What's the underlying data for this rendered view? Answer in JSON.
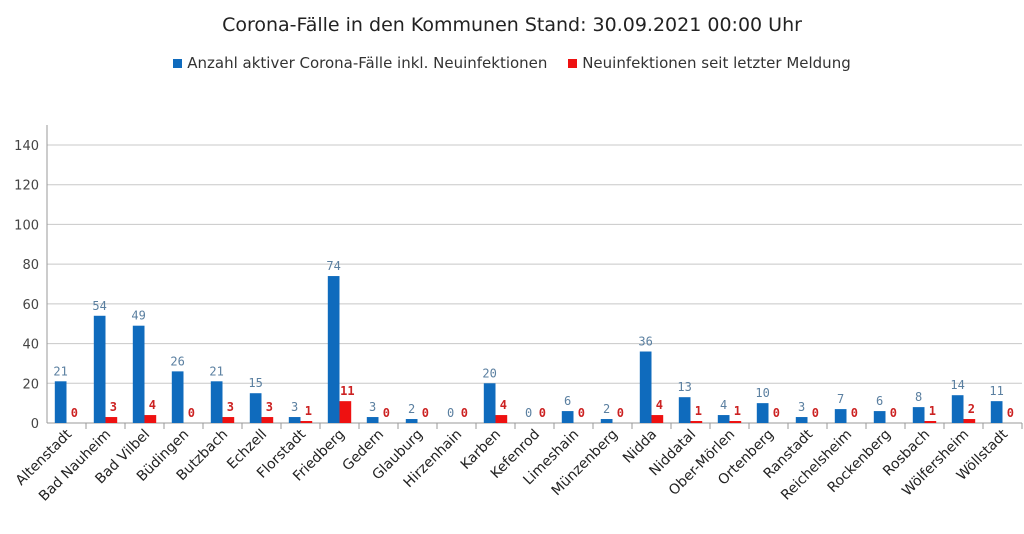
{
  "chart_data": {
    "type": "bar",
    "title": "Corona-Fälle in den Kommunen Stand: 30.09.2021 00:00 Uhr",
    "categories": [
      "Altenstadt",
      "Bad Nauheim",
      "Bad Vilbel",
      "Büdingen",
      "Butzbach",
      "Echzell",
      "Florstadt",
      "Friedberg",
      "Gedern",
      "Glauburg",
      "Hirzenhain",
      "Karben",
      "Kefenrod",
      "Limeshain",
      "Münzenberg",
      "Nidda",
      "Niddatal",
      "Ober-Mörlen",
      "Ortenberg",
      "Ranstadt",
      "Reichelsheim",
      "Rockenberg",
      "Rosbach",
      "Wölfersheim",
      "Wöllstadt"
    ],
    "series": [
      {
        "name": "Anzahl aktiver Corona-Fälle inkl. Neuinfektionen",
        "color": "#0f6bbd",
        "values": [
          21,
          54,
          49,
          26,
          21,
          15,
          3,
          74,
          3,
          2,
          0,
          20,
          0,
          6,
          2,
          36,
          13,
          4,
          10,
          3,
          7,
          6,
          8,
          14,
          11
        ]
      },
      {
        "name": "Neuinfektionen seit letzter Meldung",
        "color": "#ee1111",
        "values": [
          0,
          3,
          4,
          0,
          3,
          3,
          1,
          11,
          0,
          0,
          0,
          4,
          0,
          0,
          0,
          4,
          1,
          1,
          0,
          0,
          0,
          0,
          1,
          2,
          0
        ]
      }
    ],
    "ylim": [
      0,
      140
    ],
    "yticks": [
      0,
      20,
      40,
      60,
      80,
      100,
      120,
      140
    ],
    "grid": true,
    "legend": "top"
  }
}
